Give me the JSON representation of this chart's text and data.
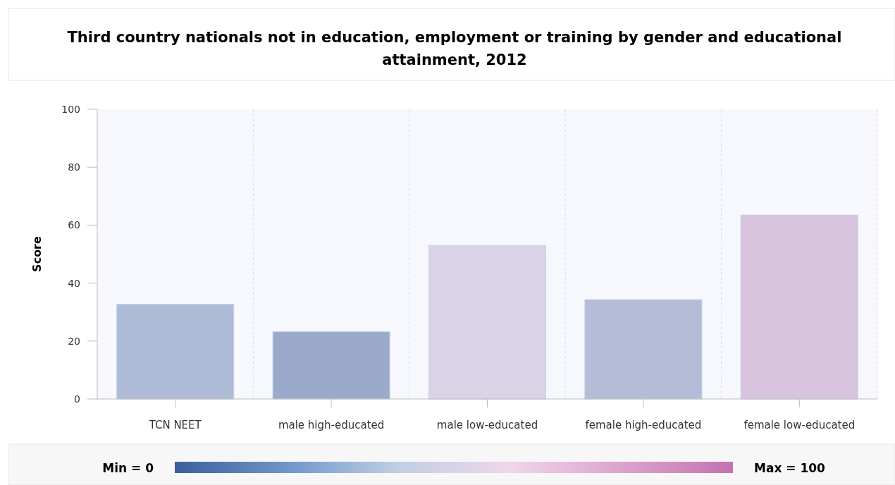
{
  "chart_data": {
    "type": "bar",
    "title": "Third country nationals not in education, employment or training by gender and educational attainment, 2012",
    "ylabel": "Score",
    "categories": [
      "TCN NEET",
      "male high-educated",
      "male low-educated",
      "female high-educated",
      "female low-educated"
    ],
    "values": [
      32.7,
      23.2,
      53.0,
      34.3,
      63.5
    ],
    "colors": [
      "#aebbd7",
      "#9baacb",
      "#dad3e7",
      "#b4bcd7",
      "#d8c4df"
    ],
    "ylim": [
      0,
      100
    ],
    "yticks": [
      0,
      20,
      40,
      60,
      80,
      100
    ],
    "grid": true,
    "annotations": [
      "Min = 0",
      "Max = 100"
    ]
  }
}
